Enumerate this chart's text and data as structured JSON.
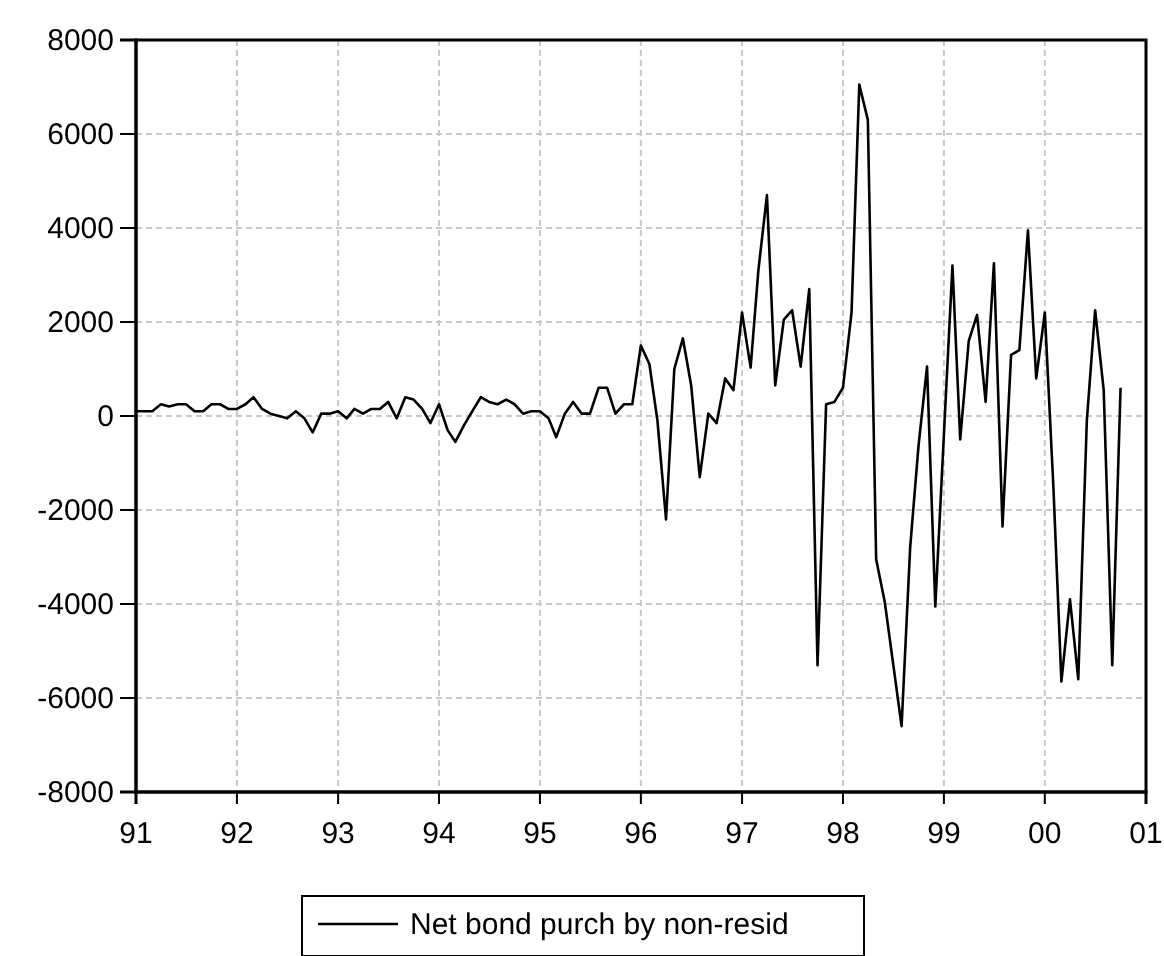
{
  "chart_data": {
    "type": "line",
    "legend": "bottom",
    "grid": true,
    "line_style": "solid",
    "xlim": [
      "1991-01",
      "2001-01"
    ],
    "xticks": [
      {
        "value": "1991-01",
        "label": "91"
      },
      {
        "value": "1992-01",
        "label": "92"
      },
      {
        "value": "1993-01",
        "label": "93"
      },
      {
        "value": "1994-01",
        "label": "94"
      },
      {
        "value": "1995-01",
        "label": "95"
      },
      {
        "value": "1996-01",
        "label": "96"
      },
      {
        "value": "1997-01",
        "label": "97"
      },
      {
        "value": "1998-01",
        "label": "98"
      },
      {
        "value": "1999-01",
        "label": "99"
      },
      {
        "value": "2000-01",
        "label": "00"
      },
      {
        "value": "2001-01",
        "label": "01"
      }
    ],
    "ylim": [
      -8000,
      8000
    ],
    "yticks": [
      -8000,
      -6000,
      -4000,
      -2000,
      0,
      2000,
      4000,
      6000,
      8000
    ],
    "series": [
      {
        "name": "Net bond purch by non-resid",
        "color": "#000000",
        "values": [
          100,
          100,
          100,
          250,
          200,
          250,
          250,
          100,
          100,
          250,
          250,
          150,
          150,
          250,
          400,
          150,
          50,
          0,
          -50,
          100,
          -50,
          -350,
          50,
          50,
          100,
          -50,
          150,
          50,
          150,
          150,
          300,
          -50,
          400,
          350,
          150,
          -150,
          250,
          -300,
          -550,
          -200,
          100,
          400,
          300,
          250,
          350,
          250,
          50,
          100,
          100,
          -50,
          -450,
          50,
          300,
          50,
          50,
          600,
          600,
          50,
          250,
          250,
          1500,
          1100,
          -100,
          -2200,
          1000,
          1650,
          650,
          -1300,
          50,
          -150,
          800,
          550,
          2200,
          1030,
          3100,
          4700,
          650,
          2050,
          2250,
          1050,
          2700,
          -5300,
          250,
          300,
          600,
          2200,
          7050,
          6300,
          -3050,
          -3950,
          -5250,
          -6600,
          -2800,
          -650,
          1050,
          -4050,
          -400,
          3200,
          -500,
          1600,
          2150,
          300,
          3250,
          -2350,
          1300,
          1400,
          3950,
          800,
          2200,
          -1500,
          -5650,
          -3900,
          -5600,
          -100,
          2250,
          550,
          -5300,
          600
        ]
      }
    ],
    "x": [
      "1991-01",
      "1991-02",
      "1991-03",
      "1991-04",
      "1991-05",
      "1991-06",
      "1991-07",
      "1991-08",
      "1991-09",
      "1991-10",
      "1991-11",
      "1991-12",
      "1992-01",
      "1992-02",
      "1992-03",
      "1992-04",
      "1992-05",
      "1992-06",
      "1992-07",
      "1992-08",
      "1992-09",
      "1992-10",
      "1992-11",
      "1992-12",
      "1993-01",
      "1993-02",
      "1993-03",
      "1993-04",
      "1993-05",
      "1993-06",
      "1993-07",
      "1993-08",
      "1993-09",
      "1993-10",
      "1993-11",
      "1993-12",
      "1994-01",
      "1994-02",
      "1994-03",
      "1994-04",
      "1994-05",
      "1994-06",
      "1994-07",
      "1994-08",
      "1994-09",
      "1994-10",
      "1994-11",
      "1994-12",
      "1995-01",
      "1995-02",
      "1995-03",
      "1995-04",
      "1995-05",
      "1995-06",
      "1995-07",
      "1995-08",
      "1995-09",
      "1995-10",
      "1995-11",
      "1995-12",
      "1996-01",
      "1996-02",
      "1996-03",
      "1996-04",
      "1996-05",
      "1996-06",
      "1996-07",
      "1996-08",
      "1996-09",
      "1996-10",
      "1996-11",
      "1996-12",
      "1997-01",
      "1997-02",
      "1997-03",
      "1997-04",
      "1997-05",
      "1997-06",
      "1997-07",
      "1997-08",
      "1997-09",
      "1997-10",
      "1997-11",
      "1997-12",
      "1998-01",
      "1998-02",
      "1998-03",
      "1998-04",
      "1998-05",
      "1998-06",
      "1998-07",
      "1998-08",
      "1998-09",
      "1998-10",
      "1998-11",
      "1998-12",
      "1999-01",
      "1999-02",
      "1999-03",
      "1999-04",
      "1999-05",
      "1999-06",
      "1999-07",
      "1999-08",
      "1999-09",
      "1999-10",
      "1999-11",
      "1999-12",
      "2000-01",
      "2000-02",
      "2000-03",
      "2000-04",
      "2000-05",
      "2000-06",
      "2000-07",
      "2000-08",
      "2000-09",
      "2000-10"
    ]
  }
}
